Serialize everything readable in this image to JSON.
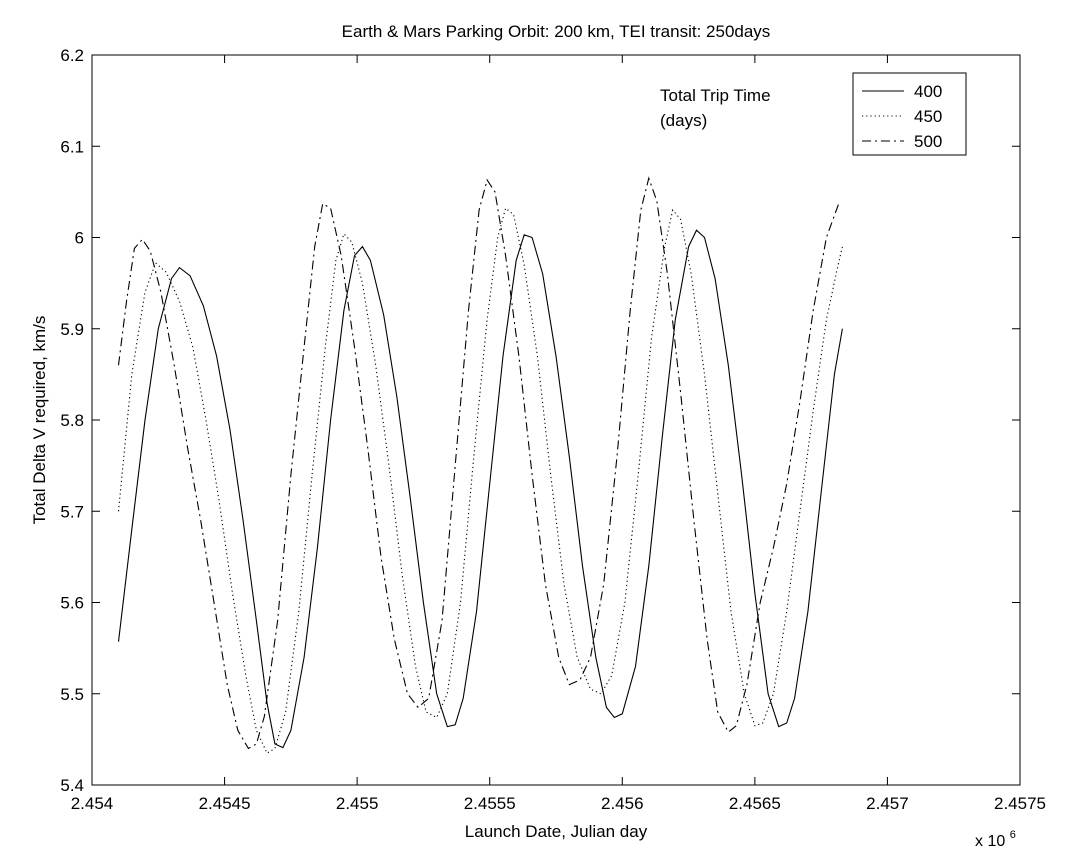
{
  "chart_data": {
    "type": "line",
    "title": "Earth & Mars Parking Orbit: 200 km, TEI transit: 250days",
    "xlabel": "Launch Date, Julian day",
    "ylabel": "Total Delta V required, km/s",
    "x_multiplier": "x 10",
    "x_multiplier_exp": "6",
    "xlim": [
      2.454,
      2.4575
    ],
    "ylim": [
      5.4,
      6.2
    ],
    "x_tick_values": [
      2.454,
      2.4545,
      2.455,
      2.4555,
      2.456,
      2.4565,
      2.457,
      2.4575
    ],
    "x_tick_labels": [
      "2.454",
      "2.4545",
      "2.455",
      "2.4555",
      "2.456",
      "2.4565",
      "2.457",
      "2.4575"
    ],
    "y_tick_values": [
      5.4,
      5.5,
      5.6,
      5.7,
      5.8,
      5.9,
      6.0,
      6.1,
      6.2
    ],
    "y_tick_labels": [
      "5.4",
      "5.5",
      "5.6",
      "5.7",
      "5.8",
      "5.9",
      "6",
      "6.1",
      "6.2"
    ],
    "grid": false,
    "legend_title": [
      "Total Trip Time",
      "(days)"
    ],
    "legend_position": "top-right",
    "series": [
      {
        "name": "400",
        "style": "solid",
        "points": [
          [
            2.4541,
            5.557
          ],
          [
            2.45415,
            5.68
          ],
          [
            2.4542,
            5.8
          ],
          [
            2.45425,
            5.9
          ],
          [
            2.4543,
            5.955
          ],
          [
            2.45433,
            5.967
          ],
          [
            2.45437,
            5.958
          ],
          [
            2.45442,
            5.925
          ],
          [
            2.45447,
            5.87
          ],
          [
            2.45452,
            5.79
          ],
          [
            2.45457,
            5.69
          ],
          [
            2.45462,
            5.58
          ],
          [
            2.45466,
            5.49
          ],
          [
            2.45469,
            5.445
          ],
          [
            2.45472,
            5.441
          ],
          [
            2.45475,
            5.46
          ],
          [
            2.4548,
            5.54
          ],
          [
            2.45485,
            5.66
          ],
          [
            2.4549,
            5.8
          ],
          [
            2.45495,
            5.92
          ],
          [
            2.45499,
            5.98
          ],
          [
            2.45502,
            5.99
          ],
          [
            2.45505,
            5.975
          ],
          [
            2.4551,
            5.915
          ],
          [
            2.45515,
            5.825
          ],
          [
            2.4552,
            5.715
          ],
          [
            2.45525,
            5.6
          ],
          [
            2.4553,
            5.5
          ],
          [
            2.45534,
            5.464
          ],
          [
            2.45537,
            5.466
          ],
          [
            2.4554,
            5.495
          ],
          [
            2.45545,
            5.59
          ],
          [
            2.4555,
            5.73
          ],
          [
            2.45555,
            5.87
          ],
          [
            2.4556,
            5.975
          ],
          [
            2.45563,
            6.003
          ],
          [
            2.45566,
            6.0
          ],
          [
            2.4557,
            5.96
          ],
          [
            2.45575,
            5.87
          ],
          [
            2.4558,
            5.76
          ],
          [
            2.45585,
            5.64
          ],
          [
            2.4559,
            5.54
          ],
          [
            2.45594,
            5.485
          ],
          [
            2.45597,
            5.474
          ],
          [
            2.456,
            5.478
          ],
          [
            2.45605,
            5.53
          ],
          [
            2.4561,
            5.64
          ],
          [
            2.45615,
            5.78
          ],
          [
            2.4562,
            5.91
          ],
          [
            2.45625,
            5.99
          ],
          [
            2.45628,
            6.008
          ],
          [
            2.45631,
            6.0
          ],
          [
            2.45635,
            5.955
          ],
          [
            2.4564,
            5.86
          ],
          [
            2.45645,
            5.74
          ],
          [
            2.4565,
            5.61
          ],
          [
            2.45655,
            5.5
          ],
          [
            2.45659,
            5.464
          ],
          [
            2.45662,
            5.468
          ],
          [
            2.45665,
            5.495
          ],
          [
            2.4567,
            5.59
          ],
          [
            2.45675,
            5.72
          ],
          [
            2.4568,
            5.85
          ],
          [
            2.45683,
            5.9
          ]
        ]
      },
      {
        "name": "450",
        "style": "dotted",
        "points": [
          [
            2.4541,
            5.7
          ],
          [
            2.45415,
            5.85
          ],
          [
            2.4542,
            5.94
          ],
          [
            2.45424,
            5.972
          ],
          [
            2.45428,
            5.962
          ],
          [
            2.45433,
            5.93
          ],
          [
            2.45438,
            5.88
          ],
          [
            2.45443,
            5.8
          ],
          [
            2.45448,
            5.71
          ],
          [
            2.45453,
            5.61
          ],
          [
            2.45458,
            5.52
          ],
          [
            2.45462,
            5.46
          ],
          [
            2.45466,
            5.435
          ],
          [
            2.45469,
            5.44
          ],
          [
            2.45473,
            5.48
          ],
          [
            2.45478,
            5.59
          ],
          [
            2.45483,
            5.74
          ],
          [
            2.45488,
            5.88
          ],
          [
            2.45492,
            5.975
          ],
          [
            2.45495,
            6.004
          ],
          [
            2.45498,
            5.995
          ],
          [
            2.45502,
            5.95
          ],
          [
            2.45507,
            5.86
          ],
          [
            2.45512,
            5.75
          ],
          [
            2.45517,
            5.63
          ],
          [
            2.45522,
            5.53
          ],
          [
            2.45526,
            5.48
          ],
          [
            2.4553,
            5.474
          ],
          [
            2.45534,
            5.5
          ],
          [
            2.45539,
            5.6
          ],
          [
            2.45544,
            5.76
          ],
          [
            2.45549,
            5.91
          ],
          [
            2.45553,
            6.0
          ],
          [
            2.45556,
            6.032
          ],
          [
            2.45559,
            6.025
          ],
          [
            2.45563,
            5.97
          ],
          [
            2.45568,
            5.87
          ],
          [
            2.45573,
            5.74
          ],
          [
            2.45578,
            5.62
          ],
          [
            2.45583,
            5.54
          ],
          [
            2.45588,
            5.505
          ],
          [
            2.45592,
            5.5
          ],
          [
            2.45596,
            5.52
          ],
          [
            2.45601,
            5.6
          ],
          [
            2.45606,
            5.74
          ],
          [
            2.45611,
            5.89
          ],
          [
            2.45616,
            5.99
          ],
          [
            2.45619,
            6.03
          ],
          [
            2.45622,
            6.02
          ],
          [
            2.45626,
            5.96
          ],
          [
            2.45631,
            5.85
          ],
          [
            2.45636,
            5.72
          ],
          [
            2.45641,
            5.59
          ],
          [
            2.45646,
            5.5
          ],
          [
            2.4565,
            5.465
          ],
          [
            2.45653,
            5.468
          ],
          [
            2.45657,
            5.5
          ],
          [
            2.45662,
            5.59
          ],
          [
            2.45667,
            5.7
          ],
          [
            2.45672,
            5.81
          ],
          [
            2.45677,
            5.91
          ],
          [
            2.45681,
            5.965
          ],
          [
            2.45683,
            5.99
          ]
        ]
      },
      {
        "name": "500",
        "style": "dashdot",
        "points": [
          [
            2.4541,
            5.86
          ],
          [
            2.45413,
            5.93
          ],
          [
            2.45416,
            5.988
          ],
          [
            2.45419,
            5.998
          ],
          [
            2.45422,
            5.985
          ],
          [
            2.45426,
            5.94
          ],
          [
            2.45431,
            5.86
          ],
          [
            2.45436,
            5.77
          ],
          [
            2.45441,
            5.69
          ],
          [
            2.45446,
            5.6
          ],
          [
            2.45451,
            5.51
          ],
          [
            2.45455,
            5.46
          ],
          [
            2.45459,
            5.44
          ],
          [
            2.45462,
            5.445
          ],
          [
            2.45465,
            5.475
          ],
          [
            2.4547,
            5.58
          ],
          [
            2.45475,
            5.74
          ],
          [
            2.4548,
            5.88
          ],
          [
            2.45484,
            5.99
          ],
          [
            2.45487,
            6.037
          ],
          [
            2.4549,
            6.032
          ],
          [
            2.45494,
            5.98
          ],
          [
            2.45499,
            5.88
          ],
          [
            2.45504,
            5.77
          ],
          [
            2.45509,
            5.65
          ],
          [
            2.45514,
            5.56
          ],
          [
            2.45519,
            5.5
          ],
          [
            2.45523,
            5.485
          ],
          [
            2.45527,
            5.495
          ],
          [
            2.45532,
            5.58
          ],
          [
            2.45537,
            5.75
          ],
          [
            2.45542,
            5.92
          ],
          [
            2.45546,
            6.03
          ],
          [
            2.45549,
            6.063
          ],
          [
            2.45552,
            6.05
          ],
          [
            2.45556,
            5.98
          ],
          [
            2.45561,
            5.87
          ],
          [
            2.45566,
            5.74
          ],
          [
            2.45571,
            5.62
          ],
          [
            2.45576,
            5.54
          ],
          [
            2.4558,
            5.51
          ],
          [
            2.45584,
            5.515
          ],
          [
            2.45588,
            5.54
          ],
          [
            2.45593,
            5.62
          ],
          [
            2.45598,
            5.76
          ],
          [
            2.45603,
            5.92
          ],
          [
            2.45607,
            6.03
          ],
          [
            2.4561,
            6.065
          ],
          [
            2.45613,
            6.04
          ],
          [
            2.45617,
            5.96
          ],
          [
            2.45622,
            5.83
          ],
          [
            2.45627,
            5.69
          ],
          [
            2.45632,
            5.56
          ],
          [
            2.45636,
            5.48
          ],
          [
            2.4564,
            5.458
          ],
          [
            2.45643,
            5.465
          ],
          [
            2.45647,
            5.51
          ],
          [
            2.45652,
            5.6
          ],
          [
            2.45657,
            5.66
          ],
          [
            2.45662,
            5.73
          ],
          [
            2.45667,
            5.82
          ],
          [
            2.45672,
            5.92
          ],
          [
            2.45677,
            6.0
          ],
          [
            2.45682,
            6.04
          ]
        ]
      }
    ]
  }
}
